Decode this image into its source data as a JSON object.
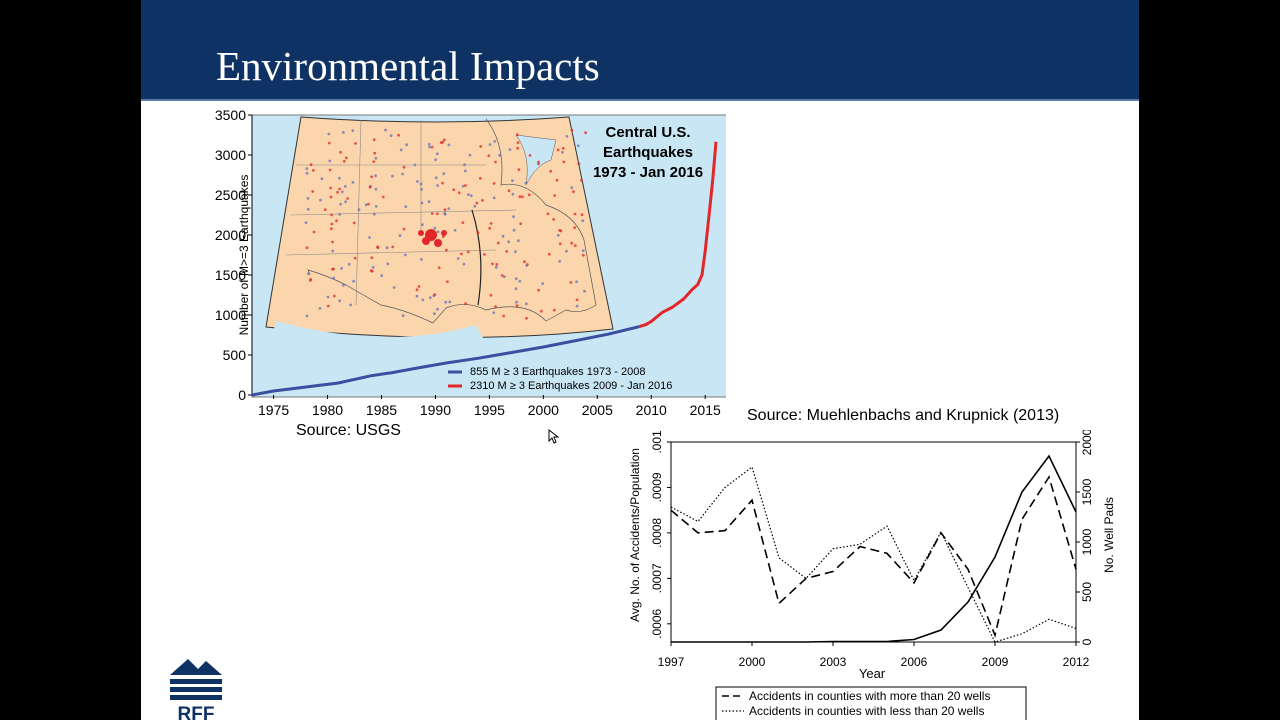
{
  "slide": {
    "title": "Environmental Impacts"
  },
  "sources": {
    "usgs": "Source: USGS",
    "muehlenbachs": "Source: Muehlenbachs and Krupnick (2013)"
  },
  "logo": {
    "text": "RFF"
  },
  "chart_data": [
    {
      "type": "line",
      "map_title_lines": [
        "Central U.S.",
        "Earthquakes",
        "1973 - Jan 2016"
      ],
      "ylabel": "Number of M>=3 Earthquakes",
      "xlabel": "",
      "ylim": [
        0,
        3500
      ],
      "xlim": [
        1973,
        2016
      ],
      "y_ticks": [
        0,
        500,
        1000,
        1500,
        2000,
        2500,
        3000,
        3500
      ],
      "x_ticks": [
        1975,
        1980,
        1985,
        1990,
        1995,
        2000,
        2005,
        2010,
        2015
      ],
      "grid": false,
      "legend_position": "bottom-right",
      "colors": {
        "blue": "#3a4fa0",
        "red": "#e2262a"
      },
      "series": [
        {
          "name": "855   M ≥ 3 Earthquakes 1973 - 2008",
          "color": "#3a4fa0",
          "x": [
            1973,
            1975,
            1978,
            1981,
            1984,
            1986,
            1988,
            1991,
            1994,
            1997,
            2000,
            2003,
            2006,
            2008.9
          ],
          "y": [
            0,
            50,
            100,
            150,
            240,
            280,
            330,
            400,
            460,
            530,
            600,
            680,
            760,
            855
          ]
        },
        {
          "name": "2310 M ≥ 3 Earthquakes 2009 - Jan 2016",
          "color": "#e2262a",
          "x": [
            2008.9,
            2009.5,
            2010,
            2011,
            2012,
            2013,
            2013.8,
            2014.3,
            2014.7,
            2015,
            2015.4,
            2015.7,
            2016
          ],
          "y": [
            855,
            880,
            920,
            1030,
            1100,
            1200,
            1320,
            1380,
            1500,
            1800,
            2300,
            2700,
            3165
          ]
        }
      ]
    },
    {
      "type": "line",
      "xlabel": "Year",
      "ylabel": "Avg. No. of Accidents/Population",
      "ylabel_right": "No. Well Pads",
      "x_ticks": [
        1997,
        2000,
        2003,
        2006,
        2009,
        2012
      ],
      "y_ticks_left": [
        ".0006",
        ".0007",
        ".0008",
        ".0009",
        ".001"
      ],
      "y_ticks_right": [
        "0",
        "500",
        "1000",
        "1500",
        "2000"
      ],
      "ylim_left": [
        0.00056,
        0.001
      ],
      "ylim_right": [
        0,
        2000
      ],
      "xlim": [
        1997,
        2012
      ],
      "grid": false,
      "legend_position": "bottom",
      "series": [
        {
          "name": "Accidents in counties with more than 20 wells",
          "style": "dashed",
          "axis": "left",
          "x": [
            1997,
            1998,
            1999,
            2000,
            2001,
            2002,
            2003,
            2004,
            2005,
            2006,
            2007,
            2008,
            2009,
            2010,
            2011,
            2012
          ],
          "y": [
            0.00085,
            0.0008,
            0.000805,
            0.000872,
            0.000645,
            0.0007,
            0.000715,
            0.00077,
            0.000755,
            0.00069,
            0.0008,
            0.00072,
            0.000575,
            0.00083,
            0.000923,
            0.00072
          ]
        },
        {
          "name": "Accidents in counties with less than 20 wells",
          "style": "dotted",
          "axis": "left",
          "x": [
            1997,
            1998,
            1999,
            2000,
            2001,
            2002,
            2003,
            2004,
            2005,
            2006,
            2007,
            2008,
            2009,
            2010,
            2011,
            2012
          ],
          "y": [
            0.000857,
            0.000825,
            0.0009,
            0.000945,
            0.000745,
            0.0007,
            0.000765,
            0.000775,
            0.000815,
            0.000695,
            0.000802,
            0.00068,
            0.00056,
            0.000578,
            0.00061,
            0.00059
          ]
        },
        {
          "name": "",
          "style": "solid",
          "axis": "right",
          "x": [
            1997,
            1998,
            1999,
            2000,
            2001,
            2002,
            2003,
            2004,
            2005,
            2006,
            2007,
            2008,
            2009,
            2010,
            2011,
            2012
          ],
          "y": [
            0,
            0,
            0,
            0,
            0,
            0,
            5,
            5,
            5,
            25,
            120,
            400,
            850,
            1500,
            1860,
            1300
          ]
        }
      ]
    }
  ]
}
